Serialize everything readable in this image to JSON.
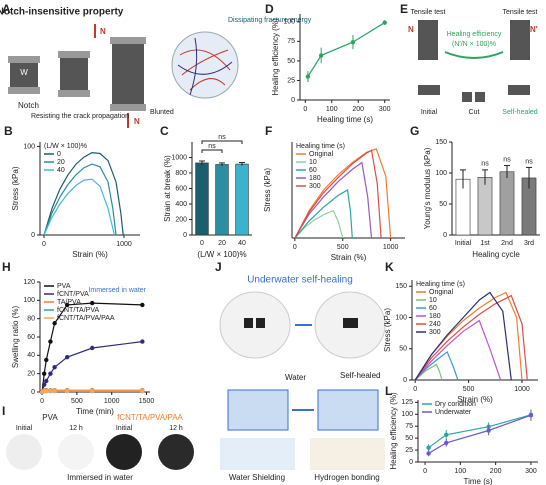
{
  "panel_labels": [
    "A",
    "B",
    "C",
    "D",
    "E",
    "F",
    "G",
    "H",
    "I",
    "J",
    "K",
    "L"
  ],
  "figure_A": {
    "title": "Notch-insensitive property",
    "force_top": "N",
    "force_bottom": "N",
    "width": "W",
    "notch": "Notch",
    "resist": "Resisting the crack propagation",
    "blunted": "Blunted",
    "energy": "Dissipating fracture energy"
  },
  "figure_E": {
    "tensile_left": "Tensile test",
    "tensile_right": "Tensile test",
    "force_left": "N",
    "force_right": "N′",
    "efficiency": "Healing efficiency",
    "formula": "(N′/N × 100)%",
    "initial": "Initial",
    "cut": "Cut",
    "healed": "Self-healed"
  },
  "figure_I": {
    "left_title": "PVA",
    "right_title": "fCNT/TA/PVA/PAA",
    "left_initial": "Initial",
    "left_after": "12 h",
    "right_initial": "Initial",
    "right_after": "12 h",
    "caption": "Immersed in water"
  },
  "figure_J": {
    "title": "Underwater self-healing",
    "water": "Water",
    "healed": "Self-healed",
    "shielding": "Water Shielding",
    "bonding": "Hydrogen bonding"
  },
  "chart_data": [
    {
      "type": "line",
      "xlabel": "Strain (%)",
      "ylabel": "Stress (kPa)",
      "xlim": [
        -50,
        1200
      ],
      "ylim": [
        0,
        105
      ],
      "xticks": [
        0,
        1000
      ],
      "yticks": [
        0,
        100
      ],
      "legend_title": "(L/W × 100)%",
      "legend": "top-left",
      "series": [
        {
          "name": "0",
          "color": "#1d5a72",
          "x": [
            0,
            100,
            200,
            300,
            400,
            500,
            600,
            700,
            800,
            900,
            960,
            990
          ],
          "values": [
            0,
            30,
            52,
            68,
            80,
            88,
            93,
            92,
            84,
            60,
            25,
            0
          ]
        },
        {
          "name": "20",
          "color": "#238f9e",
          "x": [
            0,
            100,
            200,
            300,
            400,
            500,
            600,
            700,
            800,
            860,
            900
          ],
          "values": [
            0,
            25,
            43,
            57,
            68,
            76,
            80,
            77,
            60,
            30,
            0
          ]
        },
        {
          "name": "40",
          "color": "#45b8d6",
          "x": [
            0,
            100,
            200,
            300,
            400,
            500,
            600,
            700,
            800,
            880
          ],
          "values": [
            0,
            20,
            35,
            47,
            56,
            62,
            63,
            55,
            30,
            0
          ]
        }
      ]
    },
    {
      "type": "bar",
      "xlabel": "(L/W × 100)%",
      "ylabel": "Strain at break (%)",
      "ylim": [
        0,
        1200
      ],
      "yticks": [
        0,
        200,
        400,
        600,
        800,
        1000
      ],
      "categories": [
        "0",
        "20",
        "40"
      ],
      "values": [
        930,
        910,
        915
      ],
      "errors": [
        25,
        20,
        20
      ],
      "colors": [
        "#1b5e6e",
        "#2a8fa0",
        "#3bb3cc"
      ],
      "annotations": [
        "ns",
        "ns"
      ]
    },
    {
      "type": "line",
      "xlabel": "Healing time (s)",
      "ylabel": "Healing efficiency (%)",
      "xlim": [
        -20,
        320
      ],
      "ylim": [
        0,
        110
      ],
      "xticks": [
        0,
        100,
        200,
        300
      ],
      "yticks": [
        0,
        25,
        50,
        75,
        100
      ],
      "markers": true,
      "series": [
        {
          "color": "#2aa660",
          "x": [
            10,
            60,
            180,
            300
          ],
          "values": [
            30,
            57,
            74,
            99
          ],
          "errors": [
            7,
            10,
            9,
            3
          ]
        }
      ]
    },
    {
      "type": "line",
      "xlabel": "Strain (%)",
      "ylabel": "Stress (kPa)",
      "xlim": [
        -30,
        1150
      ],
      "ylim": [
        0,
        140
      ],
      "xticks": [
        0,
        500,
        1000
      ],
      "legend_title": "Healing time (s)",
      "legend": "top-left",
      "series": [
        {
          "name": "Original",
          "color": "#f07d2b",
          "x": [
            0,
            150,
            300,
            450,
            600,
            750,
            850,
            950,
            1000
          ],
          "values": [
            0,
            40,
            70,
            92,
            110,
            125,
            130,
            90,
            0
          ]
        },
        {
          "name": "10",
          "color": "#8fd19e",
          "x": [
            0,
            100,
            200,
            300,
            400,
            450,
            500
          ],
          "values": [
            0,
            15,
            26,
            34,
            40,
            25,
            0
          ]
        },
        {
          "name": "60",
          "color": "#2aa6a0",
          "x": [
            0,
            150,
            300,
            450,
            550,
            580,
            600
          ],
          "values": [
            0,
            25,
            45,
            62,
            70,
            40,
            0
          ]
        },
        {
          "name": "180",
          "color": "#9b59b6",
          "x": [
            0,
            150,
            300,
            450,
            600,
            700,
            760,
            800
          ],
          "values": [
            0,
            35,
            60,
            82,
            100,
            110,
            60,
            0
          ]
        },
        {
          "name": "300",
          "color": "#e04a4a",
          "x": [
            0,
            150,
            300,
            450,
            600,
            750,
            800,
            860,
            900
          ],
          "values": [
            0,
            38,
            66,
            88,
            108,
            124,
            128,
            80,
            0
          ]
        }
      ]
    },
    {
      "type": "bar",
      "xlabel": "Healing cycle",
      "ylabel": "Young's modulus (kPa)",
      "ylim": [
        0,
        150
      ],
      "yticks": [
        0,
        50,
        100,
        150
      ],
      "categories": [
        "Initial",
        "1st",
        "2nd",
        "3rd"
      ],
      "values": [
        90,
        93,
        102,
        92
      ],
      "errors": [
        15,
        12,
        10,
        17
      ],
      "colors": [
        "#ffffff",
        "#c8c8c8",
        "#a0a0a0",
        "#7a7a7a"
      ],
      "annotations": [
        "ns",
        "ns",
        "ns"
      ]
    },
    {
      "type": "line",
      "xlabel": "Time (min)",
      "ylabel": "Swelling ratio (%)",
      "xlim": [
        -30,
        1550
      ],
      "ylim": [
        0,
        120
      ],
      "xticks": [
        0,
        500,
        1000,
        1500
      ],
      "yticks": [
        0,
        20,
        40,
        60,
        80,
        100,
        120
      ],
      "markers": true,
      "legend": "top-left",
      "annotation": "Immersed in water",
      "x": [
        0,
        30,
        60,
        120,
        180,
        360,
        720,
        1440
      ],
      "series": [
        {
          "name": "PVA",
          "color": "#111111",
          "values": [
            0,
            20,
            35,
            55,
            75,
            95,
            97,
            95
          ]
        },
        {
          "name": "fCNT/PVA",
          "color": "#2c2c7a",
          "values": [
            0,
            8,
            12,
            20,
            27,
            38,
            48,
            55
          ]
        },
        {
          "name": "TA/PVA",
          "color": "#f07d2b",
          "values": [
            0,
            2,
            2,
            2,
            2,
            2,
            2,
            2
          ]
        },
        {
          "name": "fCNT/TA/PVA",
          "color": "#2aa6a0",
          "values": [
            0,
            1,
            1,
            1,
            1,
            1,
            1,
            1
          ]
        },
        {
          "name": "fCNT/TA/PVA/PAA",
          "color": "#f5a65b",
          "values": [
            0,
            1,
            1,
            1,
            1,
            1,
            1,
            1
          ]
        }
      ]
    },
    {
      "type": "line",
      "xlabel": "Strain (%)",
      "ylabel": "Stress (kPa)",
      "xlim": [
        -30,
        1150
      ],
      "ylim": [
        0,
        160
      ],
      "xticks": [
        0,
        500,
        1000
      ],
      "yticks": [
        0,
        50,
        100,
        150
      ],
      "legend_title": "Healing time (s)",
      "legend": "top-left",
      "series": [
        {
          "name": "Original",
          "color": "#f07d2b",
          "x": [
            0,
            150,
            300,
            450,
            600,
            750,
            850,
            950,
            1000
          ],
          "values": [
            0,
            40,
            70,
            95,
            115,
            132,
            140,
            100,
            0
          ]
        },
        {
          "name": "10",
          "color": "#7cc47c",
          "x": [
            0,
            100,
            200,
            230,
            250
          ],
          "values": [
            0,
            15,
            25,
            12,
            0
          ]
        },
        {
          "name": "60",
          "color": "#3a9ad6",
          "x": [
            0,
            100,
            200,
            300,
            360,
            400
          ],
          "values": [
            0,
            18,
            32,
            45,
            20,
            0
          ]
        },
        {
          "name": "180",
          "color": "#c054c9",
          "x": [
            0,
            150,
            300,
            450,
            600,
            700,
            800
          ],
          "values": [
            0,
            30,
            55,
            78,
            95,
            50,
            0
          ]
        },
        {
          "name": "240",
          "color": "#e04a4a",
          "x": [
            0,
            150,
            300,
            450,
            600,
            750,
            900,
            1000,
            1050
          ],
          "values": [
            0,
            35,
            62,
            85,
            105,
            122,
            135,
            90,
            0
          ]
        },
        {
          "name": "300",
          "color": "#2c2c7a",
          "x": [
            0,
            150,
            300,
            450,
            600,
            700,
            820,
            900
          ],
          "values": [
            0,
            40,
            72,
            100,
            128,
            140,
            110,
            0
          ]
        }
      ]
    },
    {
      "type": "line",
      "xlabel": "Time (s)",
      "ylabel": "Healing efficiency (%)",
      "xlim": [
        -20,
        320
      ],
      "ylim": [
        0,
        130
      ],
      "xticks": [
        0,
        100,
        200,
        300
      ],
      "yticks": [
        0,
        25,
        50,
        75,
        100,
        125
      ],
      "markers": true,
      "legend": "top-left",
      "series": [
        {
          "name": "Dry condition",
          "color": "#2aa6a0",
          "x": [
            10,
            60,
            180,
            300
          ],
          "values": [
            30,
            57,
            74,
            99
          ],
          "errors": [
            7,
            10,
            9,
            5
          ]
        },
        {
          "name": "Underwater",
          "color": "#6a5acd",
          "x": [
            10,
            60,
            180,
            300
          ],
          "values": [
            18,
            40,
            66,
            98
          ],
          "errors": [
            6,
            8,
            10,
            12
          ]
        }
      ]
    }
  ]
}
